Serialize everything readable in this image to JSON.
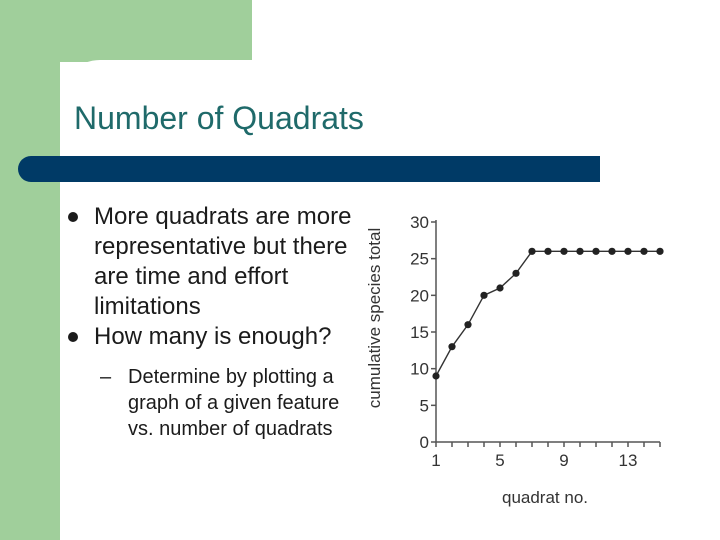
{
  "slide": {
    "title": "Number of Quadrats",
    "bullets": [
      "More quadrats are more representative but there are time and effort limitations",
      "How many is enough?"
    ],
    "subbullets": [
      "Determine by plotting a graph of a given feature vs. number of quadrats"
    ],
    "colors": {
      "accent_green": "#a0cf9b",
      "title_bar": "#003a66",
      "title_text": "#1f6a6a"
    }
  },
  "chart_data": {
    "type": "line",
    "xlabel": "quadrat no.",
    "ylabel": "cumulative species total",
    "x_tick_labels": [
      "1",
      "5",
      "9",
      "13"
    ],
    "y_tick_labels": [
      "0",
      "5",
      "10",
      "15",
      "20",
      "25",
      "30"
    ],
    "xlim": [
      1,
      15
    ],
    "ylim": [
      0,
      30
    ],
    "grid": false,
    "series": [
      {
        "x": [
          1,
          2,
          3,
          4,
          5,
          6,
          7,
          8,
          9,
          10,
          11,
          12,
          13,
          14,
          15
        ],
        "values": [
          9,
          13,
          16,
          20,
          21,
          23,
          26,
          26,
          26,
          26,
          26,
          26,
          26,
          26,
          26
        ]
      }
    ]
  }
}
